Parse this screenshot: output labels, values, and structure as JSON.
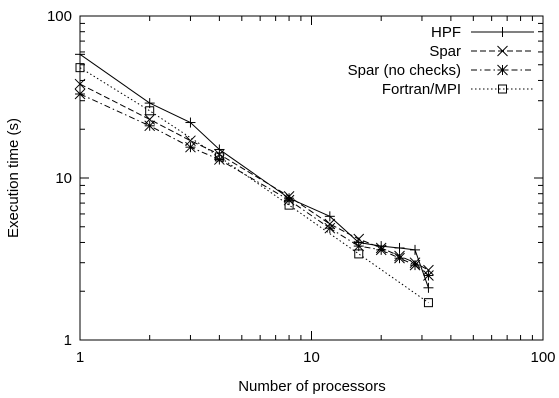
{
  "chart_data": {
    "type": "line",
    "title": "",
    "xlabel": "Number of processors",
    "ylabel": "Execution time (s)",
    "xscale": "log",
    "yscale": "log",
    "xlim": [
      1,
      100
    ],
    "ylim": [
      1,
      100
    ],
    "x_ticks": [
      {
        "value": 1,
        "label": "1"
      },
      {
        "value": 10,
        "label": "10"
      },
      {
        "value": 100,
        "label": "100"
      }
    ],
    "y_ticks": [
      {
        "value": 1,
        "label": "1"
      },
      {
        "value": 10,
        "label": "10"
      },
      {
        "value": 100,
        "label": "100"
      }
    ],
    "grid": false,
    "legend_position": "top-right",
    "series": [
      {
        "name": "HPF",
        "marker": "plus",
        "dash": "solid",
        "points": [
          [
            1,
            58
          ],
          [
            2,
            29
          ],
          [
            3,
            22
          ],
          [
            4,
            15
          ],
          [
            8,
            7.5
          ],
          [
            12,
            5.8
          ],
          [
            16,
            4.0
          ],
          [
            20,
            3.8
          ],
          [
            24,
            3.7
          ],
          [
            28,
            3.6
          ],
          [
            32,
            2.1
          ]
        ]
      },
      {
        "name": "Spar",
        "marker": "x",
        "dash": "dashed",
        "points": [
          [
            1,
            38
          ],
          [
            2,
            23
          ],
          [
            3,
            17
          ],
          [
            4,
            14
          ],
          [
            8,
            7.7
          ],
          [
            12,
            5.2
          ],
          [
            16,
            4.2
          ],
          [
            20,
            3.7
          ],
          [
            24,
            3.3
          ],
          [
            28,
            3.0
          ],
          [
            32,
            2.7
          ]
        ]
      },
      {
        "name": "Spar (no checks)",
        "marker": "star",
        "dash": "dash-dot",
        "points": [
          [
            1,
            33
          ],
          [
            2,
            21
          ],
          [
            3,
            15.5
          ],
          [
            4,
            13
          ],
          [
            8,
            7.3
          ],
          [
            12,
            4.9
          ],
          [
            16,
            3.8
          ],
          [
            20,
            3.6
          ],
          [
            24,
            3.2
          ],
          [
            28,
            2.9
          ],
          [
            32,
            2.5
          ]
        ]
      },
      {
        "name": "Fortran/MPI",
        "marker": "square",
        "dash": "dotted",
        "points": [
          [
            1,
            48
          ],
          [
            2,
            26
          ],
          [
            4,
            13.5
          ],
          [
            8,
            6.8
          ],
          [
            16,
            3.4
          ],
          [
            32,
            1.7
          ]
        ]
      }
    ]
  }
}
